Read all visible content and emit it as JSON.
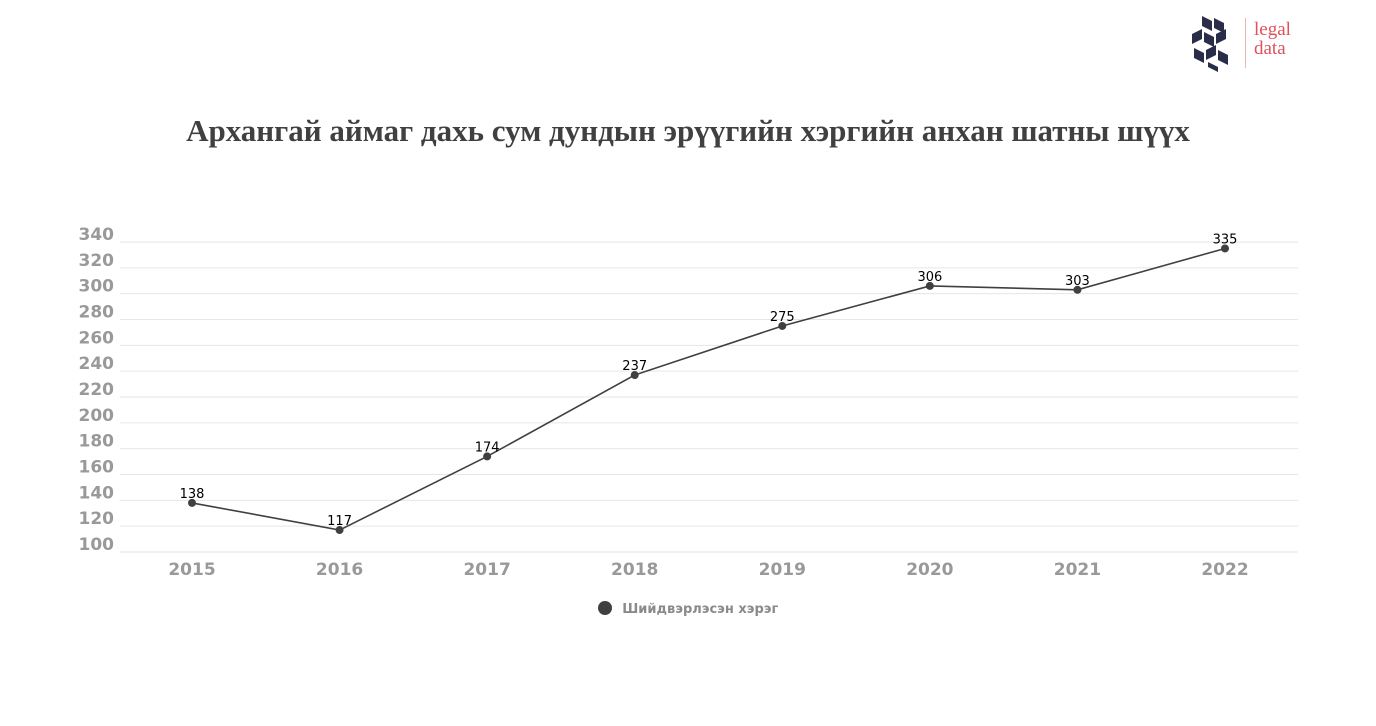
{
  "brand": {
    "logo_text": "legal\ndata",
    "logo_color": "#e0525a",
    "mark_color": "#2a2d4a"
  },
  "chart_data": {
    "type": "line",
    "title": "Архангай аймаг дахь сум дундын эрүүгийн хэргийн анхан шатны шүүх",
    "xlabel": "",
    "ylabel": "",
    "categories": [
      "2015",
      "2016",
      "2017",
      "2018",
      "2019",
      "2020",
      "2021",
      "2022"
    ],
    "series": [
      {
        "name": "Шийдвэрлэсэн хэрэг",
        "values": [
          138,
          117,
          174,
          237,
          275,
          306,
          303,
          335
        ],
        "color": "#404040"
      }
    ],
    "ylim": [
      100,
      340
    ],
    "yticks": [
      100,
      120,
      140,
      160,
      180,
      200,
      220,
      240,
      260,
      280,
      300,
      320,
      340
    ],
    "grid": true,
    "legend_position": "bottom",
    "data_labels": true
  }
}
